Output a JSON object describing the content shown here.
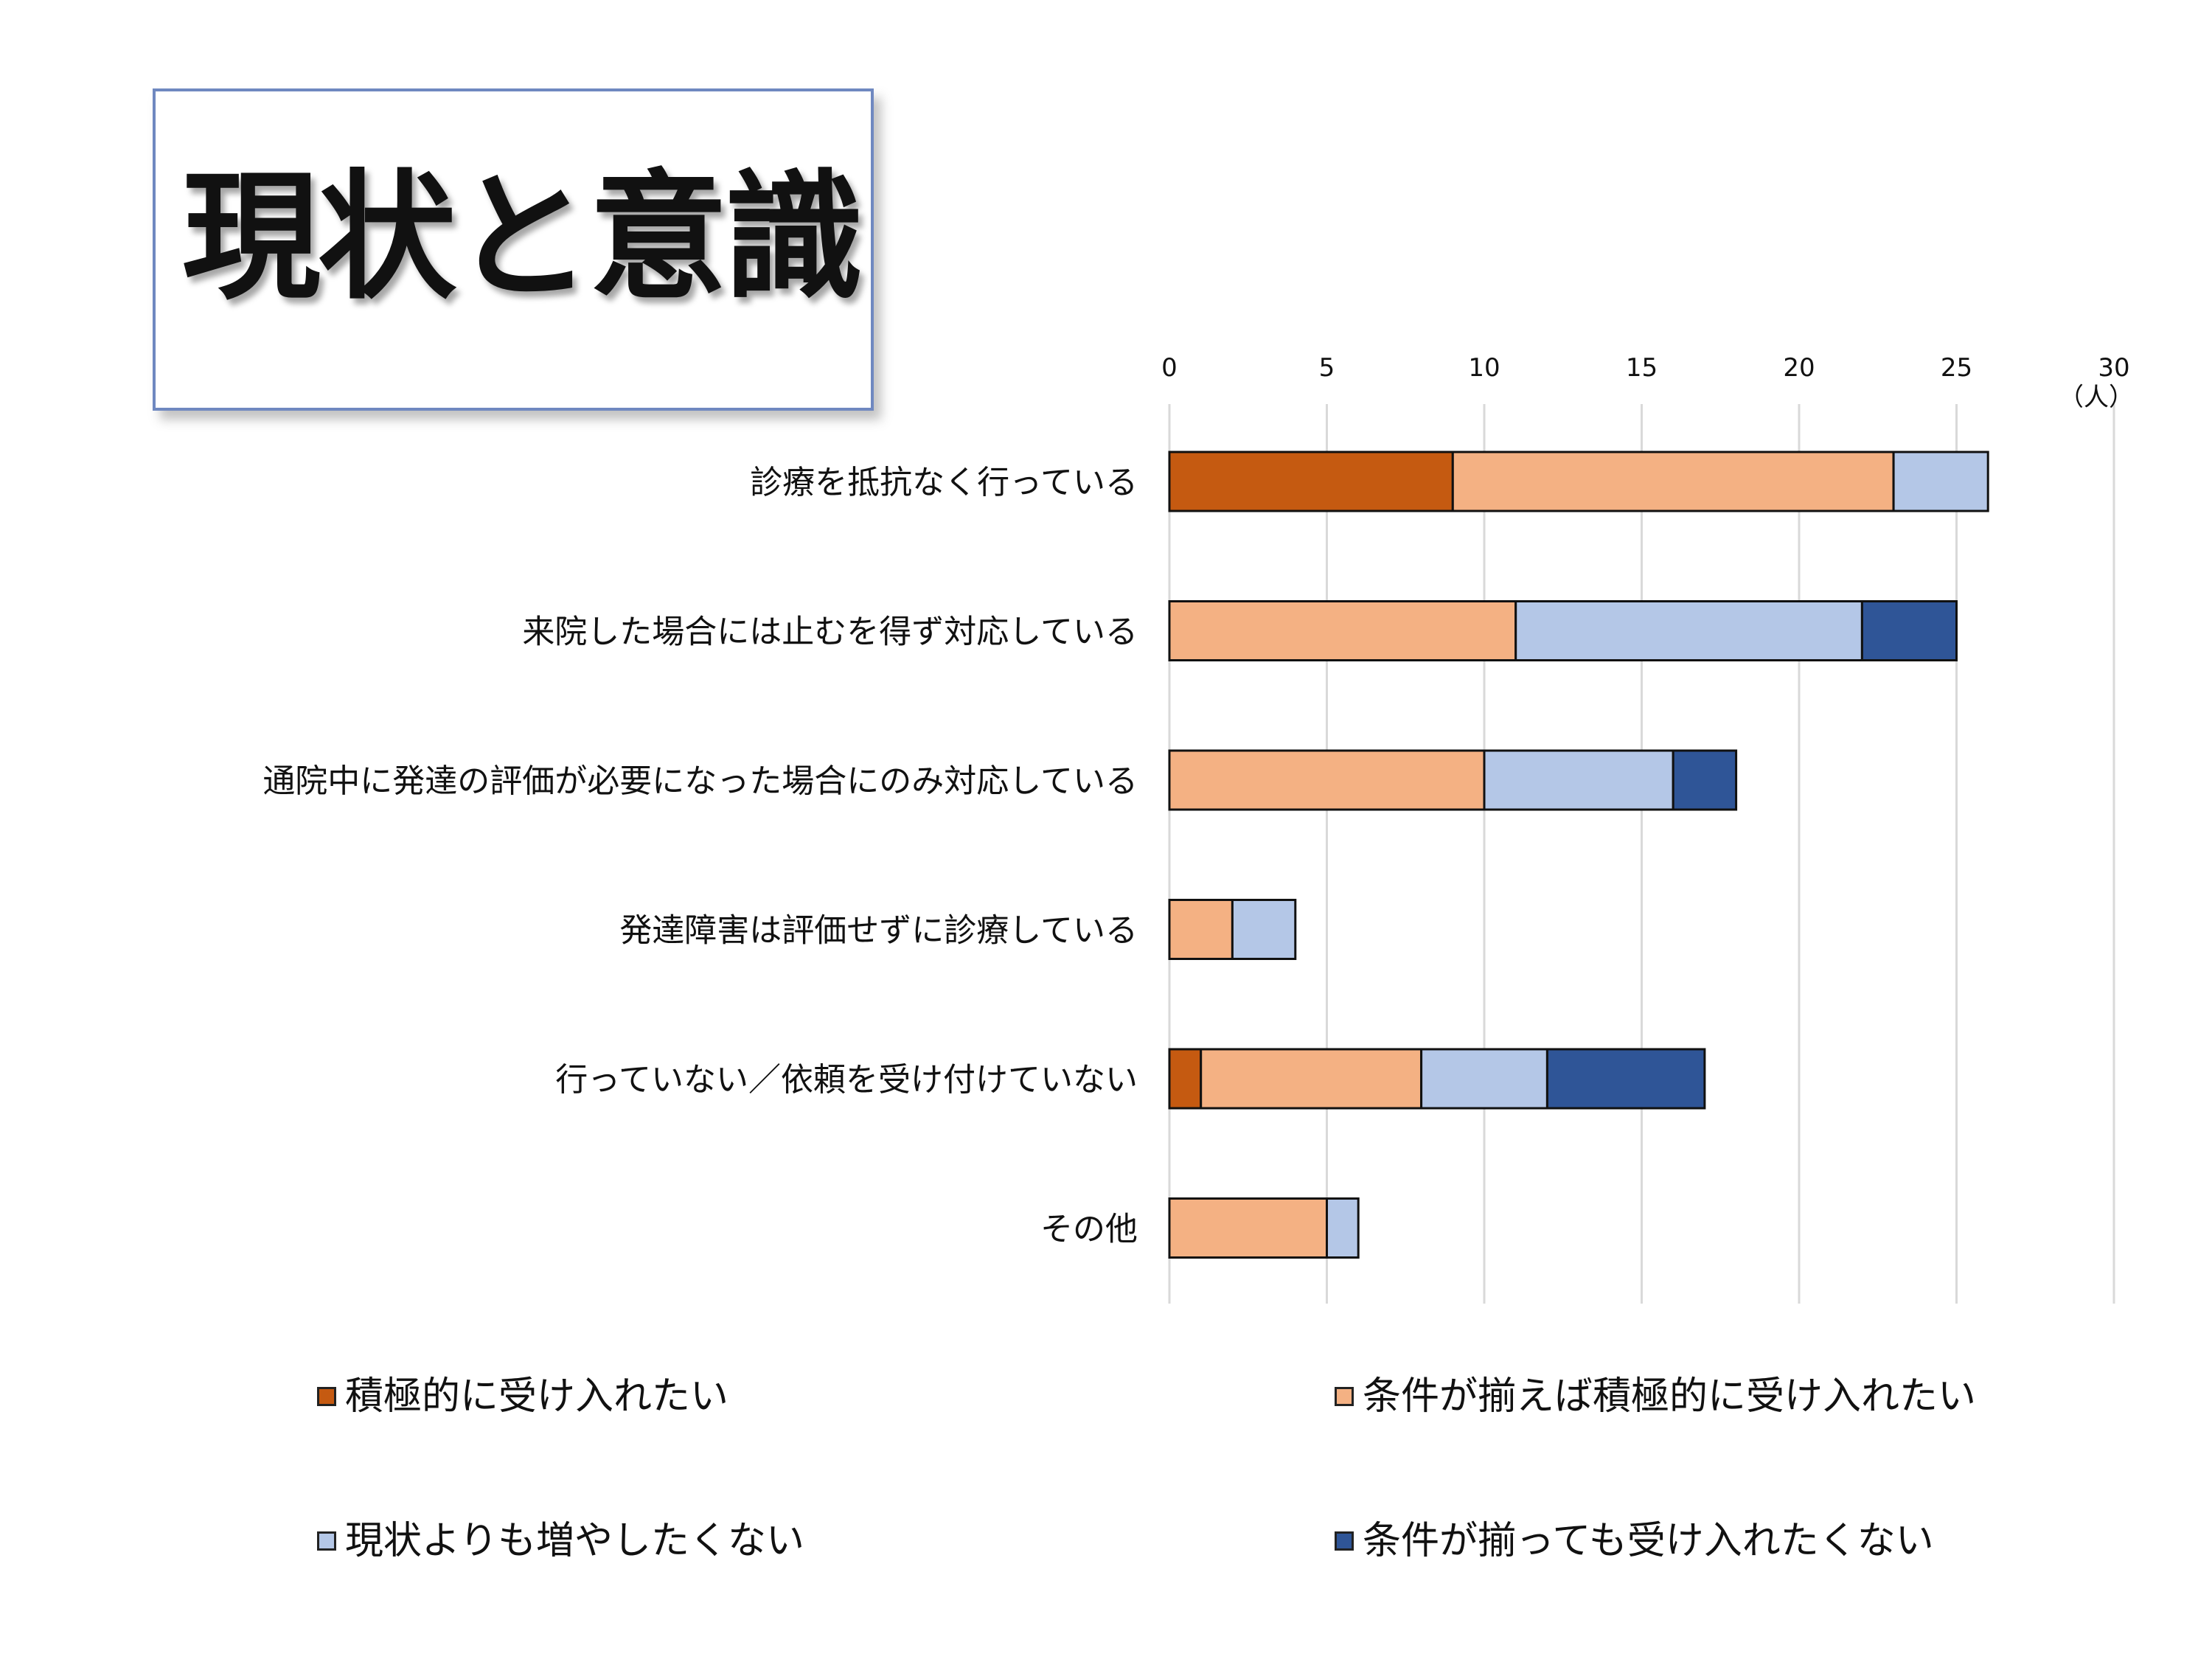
{
  "title": "現状と意識",
  "chart_data": {
    "type": "bar",
    "orientation": "horizontal",
    "stacked": true,
    "unit": "（人）",
    "xlim": [
      0,
      30
    ],
    "xticks": [
      0,
      5,
      10,
      15,
      20,
      25,
      30
    ],
    "grid": true,
    "legend_position": "bottom",
    "categories": [
      "診療を抵抗なく行っている",
      "来院した場合には止むを得ず対応している",
      "通院中に発達の評価が必要になった場合にのみ対応している",
      "発達障害は評価せずに診療している",
      "行っていない／依頼を受け付けていない",
      "その他"
    ],
    "series": [
      {
        "name": "積極的に受け入れたい",
        "color": "#c55a11",
        "values": [
          9,
          0,
          0,
          0,
          1,
          0
        ]
      },
      {
        "name": "条件が揃えば積極的に受け入れたい",
        "color": "#f4b183",
        "values": [
          14,
          11,
          10,
          2,
          7,
          5
        ]
      },
      {
        "name": "現状よりも増やしたくない",
        "color": "#b4c7e7",
        "values": [
          3,
          11,
          6,
          2,
          4,
          1
        ]
      },
      {
        "name": "条件が揃っても受け入れたくない",
        "color": "#2f5597",
        "values": [
          0,
          3,
          2,
          0,
          5,
          0
        ]
      }
    ]
  }
}
